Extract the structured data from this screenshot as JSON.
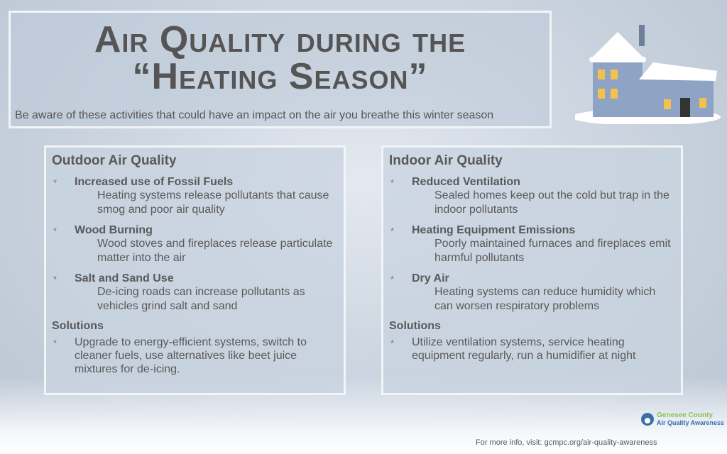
{
  "title": {
    "line1": "Air Quality during the",
    "line2": "“Heating Season”",
    "subtitle": "Be aware of these activities that could have an impact on the air you breathe this winter season"
  },
  "outdoor": {
    "heading": "Outdoor Air Quality",
    "items": [
      {
        "title": "Increased use of Fossil Fuels",
        "desc": "Heating systems release pollutants that cause smog and poor air quality"
      },
      {
        "title": "Wood Burning",
        "desc": "Wood stoves and fireplaces release particulate matter into the air"
      },
      {
        "title": "Salt and Sand Use",
        "desc": "De-icing roads can increase pollutants as vehicles grind salt and sand"
      }
    ],
    "solutions_heading": "Solutions",
    "solution": "Upgrade to energy-efficient systems, switch to cleaner fuels, use alternatives like beet juice mixtures for de-icing."
  },
  "indoor": {
    "heading": "Indoor Air Quality",
    "items": [
      {
        "title": "Reduced Ventilation",
        "desc": "Sealed homes keep out the cold but trap in the indoor pollutants"
      },
      {
        "title": "Heating Equipment Emissions",
        "desc": "Poorly maintained furnaces and fireplaces emit harmful pollutants"
      },
      {
        "title": "Dry Air",
        "desc": "Heating systems can reduce humidity which can worsen respiratory problems"
      }
    ],
    "solutions_heading": "Solutions",
    "solution": "Utilize ventilation systems, service heating equipment regularly, run a humidifier at night"
  },
  "bullet": "*",
  "logo": {
    "line1": "Genesee County",
    "line2": "Air Quality Awareness"
  },
  "footer": "For more info, visit: gcmpc.org/air-quality-awareness"
}
